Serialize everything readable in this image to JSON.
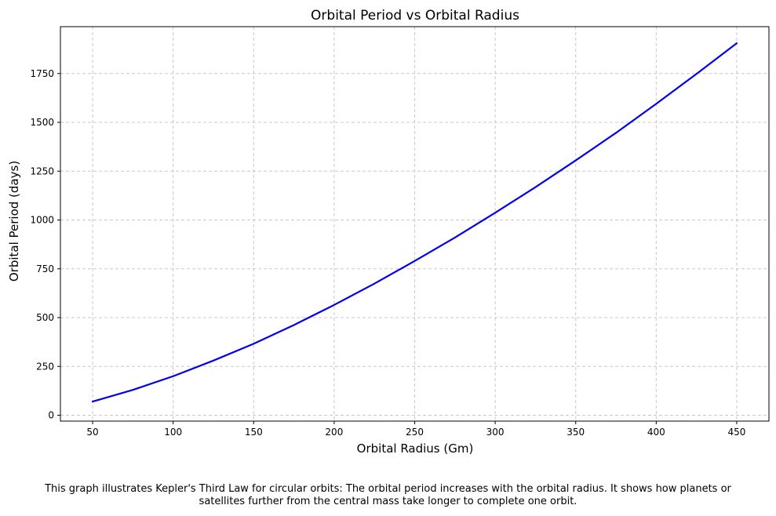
{
  "colors": {
    "series": "#0000ee",
    "grid": "#c8c8c8",
    "axes": "#000000",
    "background": "#ffffff"
  },
  "caption": {
    "line1": "This graph illustrates Kepler's Third Law for circular orbits: The orbital period increases with the orbital radius. It shows how planets or",
    "line2": "satellites further from the central mass take longer to complete one orbit."
  },
  "chart_data": {
    "type": "line",
    "title": "Orbital Period vs Orbital Radius",
    "xlabel": "Orbital Radius (Gm)",
    "ylabel": "Orbital Period (days)",
    "xlim": [
      30,
      470
    ],
    "ylim": [
      -30,
      1990
    ],
    "xticks": [
      "50",
      "100",
      "150",
      "200",
      "250",
      "300",
      "350",
      "400",
      "450"
    ],
    "yticks": [
      "0",
      "250",
      "500",
      "750",
      "1000",
      "1250",
      "1500",
      "1750"
    ],
    "grid": true,
    "grid_style": "dashed",
    "series": [
      {
        "color": "#0000ee",
        "x": [
          50,
          75,
          100,
          125,
          150,
          175,
          200,
          225,
          250,
          275,
          300,
          325,
          350,
          375,
          400,
          425,
          450
        ],
        "y": [
          70,
          130,
          200,
          280,
          366,
          462,
          565,
          674,
          790,
          910,
          1037,
          1168,
          1305,
          1446,
          1595,
          1748,
          1905
        ]
      }
    ]
  }
}
